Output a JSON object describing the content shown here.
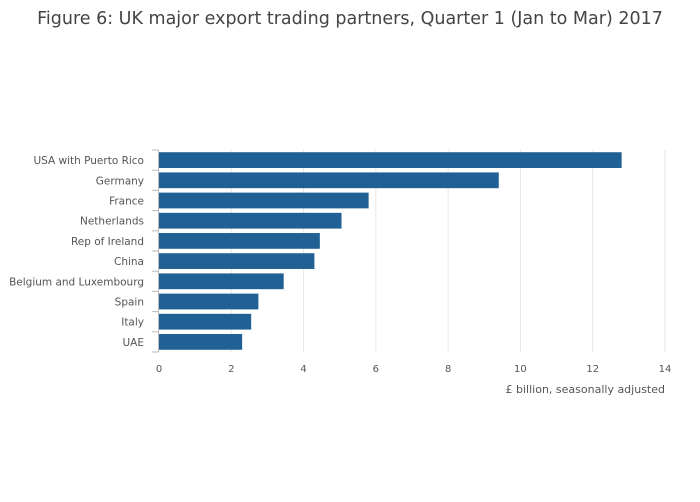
{
  "chart_data": {
    "type": "bar",
    "orientation": "horizontal",
    "title": "Figure 6: UK major export trading partners, Quarter 1 (Jan to Mar) 2017",
    "xlabel": "£ billion, seasonally adjusted",
    "ylabel": "",
    "categories": [
      "USA with Puerto Rico",
      "Germany",
      "France",
      "Netherlands",
      "Rep of Ireland",
      "China",
      "Belgium and Luxembourg",
      "Spain",
      "Italy",
      "UAE"
    ],
    "values": [
      12.8,
      9.4,
      5.8,
      5.05,
      4.45,
      4.3,
      3.45,
      2.75,
      2.55,
      2.3
    ],
    "xlim": [
      0,
      14
    ],
    "xticks": [
      0,
      2,
      4,
      6,
      8,
      10,
      12,
      14
    ],
    "grid": true,
    "legend": "none",
    "bar_color": "#206095"
  }
}
